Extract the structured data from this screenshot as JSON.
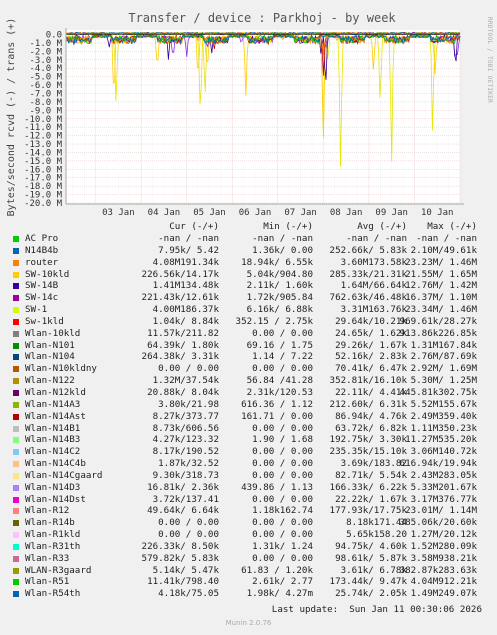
{
  "chart_data": {
    "type": "line",
    "title": "Transfer / device : Parkhoj - by week",
    "ylabel": "Bytes/second rcvd (-) / trans (+)",
    "side_label": "RRDTOOL / TOBI OETIKER",
    "yticks": [
      "0.0",
      "-1.0 M",
      "-2.0 M",
      "-3.0 M",
      "-4.0 M",
      "-5.0 M",
      "-6.0 M",
      "-7.0 M",
      "-8.0 M",
      "-9.0 M",
      "-10.0 M",
      "-11.0 M",
      "-12.0 M",
      "-13.0 M",
      "-14.0 M",
      "-15.0 M",
      "-16.0 M",
      "-17.0 M",
      "-18.0 M",
      "-19.0 M",
      "-20.0 M"
    ],
    "ytick_values": [
      0,
      -1,
      -2,
      -3,
      -4,
      -5,
      -6,
      -7,
      -8,
      -9,
      -10,
      -11,
      -12,
      -13,
      -14,
      -15,
      -16,
      -17,
      -18,
      -19,
      -20
    ],
    "ylim": [
      -20,
      0.4
    ],
    "y_unit": "M",
    "xticks": [
      "03 Jan",
      "04 Jan",
      "05 Jan",
      "06 Jan",
      "07 Jan",
      "08 Jan",
      "09 Jan",
      "10 Jan"
    ],
    "x_start_day": 2.35,
    "x_end_day": 11.0,
    "xlim_days": [
      2.35,
      11.0
    ],
    "grid": true,
    "series": [
      {
        "name": "SW-1",
        "color": "#e6e600",
        "dips": [
          [
            3.45,
            -10.5
          ],
          [
            5.3,
            -12.2
          ],
          [
            5.4,
            -8.5
          ],
          [
            8.0,
            -15.0
          ],
          [
            8.1,
            -4.5
          ],
          [
            8.38,
            -19.7
          ],
          [
            9.25,
            -11.0
          ],
          [
            9.5,
            -18.0
          ],
          [
            10.4,
            -14.5
          ]
        ]
      },
      {
        "name": "SW-10kld",
        "color": "#ffcc00",
        "dips": [
          [
            3.4,
            -9.5
          ],
          [
            4.35,
            -5.5
          ],
          [
            5.25,
            -7.0
          ],
          [
            5.45,
            -6.5
          ],
          [
            6.3,
            -8.0
          ],
          [
            8.0,
            -14.3
          ],
          [
            9.1,
            -5.5
          ],
          [
            10.45,
            -6.0
          ]
        ]
      },
      {
        "name": "SW-14c",
        "color": "#8a2be2",
        "dips": [
          [
            4.7,
            -4.2
          ],
          [
            5.0,
            -3.5
          ],
          [
            5.45,
            -2.5
          ],
          [
            6.2,
            -1.5
          ],
          [
            8.0,
            -3.5
          ],
          [
            8.05,
            -2.0
          ],
          [
            10.9,
            -4.0
          ],
          [
            10.95,
            -3.0
          ]
        ]
      },
      {
        "name": "SW-14B",
        "color": "#330099",
        "dips": [
          [
            3.3,
            -2.0
          ],
          [
            4.6,
            -3.2
          ],
          [
            5.55,
            -2.5
          ],
          [
            7.95,
            -3.0
          ],
          [
            8.05,
            -9.0
          ],
          [
            10.9,
            -4.6
          ]
        ]
      },
      {
        "name": "Sw-1kld",
        "color": "#cc0000",
        "dips": [
          [
            4.85,
            -1.5
          ],
          [
            5.6,
            -2.2
          ],
          [
            8.0,
            -5.2
          ],
          [
            10.95,
            -1.2
          ]
        ]
      },
      {
        "name": "router",
        "color": "#ff8000",
        "dips": [
          [
            3.4,
            -1.2
          ],
          [
            8.0,
            -3.0
          ],
          [
            9.7,
            -0.9
          ],
          [
            10.5,
            -1.0
          ]
        ]
      },
      {
        "name": "Wlan-N122",
        "color": "#ffa500",
        "dips": [
          [
            5.25,
            -1.0
          ],
          [
            7.1,
            -0.8
          ],
          [
            8.3,
            -1.2
          ]
        ]
      },
      {
        "name": "AC Pro",
        "color": "#00cc00",
        "dips": [
          [
            2.9,
            -0.6
          ],
          [
            4.9,
            -0.8
          ],
          [
            6.5,
            -0.7
          ],
          [
            9.0,
            -0.6
          ]
        ]
      },
      {
        "name": "N14B4b",
        "color": "#0066b3",
        "dips": [
          [
            3.6,
            -0.5
          ],
          [
            5.9,
            -0.6
          ],
          [
            8.6,
            -0.5
          ]
        ]
      }
    ]
  },
  "legend": {
    "headers": [
      "Cur (-/+)",
      "Min (-/+)",
      "Avg (-/+)",
      "Max (-/+)"
    ],
    "rows": [
      {
        "name": "AC Pro",
        "color": "#00cc00",
        "cur": "-nan / -nan",
        "min": "-nan / -nan",
        "avg": "-nan / -nan",
        "max": "-nan / -nan"
      },
      {
        "name": "N14B4b",
        "color": "#0066b3",
        "cur": "7.95k/ 5.42",
        "min": "1.36k/ 0.00",
        "avg": "252.66k/ 5.83k",
        "max": "2.10M/49.61k"
      },
      {
        "name": "router",
        "color": "#ff8000",
        "cur": "4.08M191.34k",
        "min": "18.94k/ 6.55k",
        "avg": "3.60M173.58k",
        "max": "23.23M/ 1.46M"
      },
      {
        "name": "SW-10kld",
        "color": "#ffcc00",
        "cur": "226.56k/14.17k",
        "min": "5.04k/904.80",
        "avg": "285.33k/21.31k",
        "max": "21.55M/ 1.65M"
      },
      {
        "name": "SW-14B",
        "color": "#330099",
        "cur": "1.41M134.48k",
        "min": "2.11k/ 1.60k",
        "avg": "1.64M/66.64k",
        "max": "12.76M/ 1.42M"
      },
      {
        "name": "SW-14c",
        "color": "#990099",
        "cur": "221.43k/12.61k",
        "min": "1.72k/905.84",
        "avg": "762.63k/46.48k",
        "max": "16.37M/ 1.10M"
      },
      {
        "name": "SW-1",
        "color": "#ccff00",
        "cur": "4.00M186.37k",
        "min": "6.16k/ 6.88k",
        "avg": "3.31M163.76k",
        "max": "23.34M/ 1.46M"
      },
      {
        "name": "Sw-1kld",
        "color": "#ff0000",
        "cur": "1.04k/ 8.84k",
        "min": "352.15 / 2.75k",
        "avg": "29.64k/10.21k",
        "max": "969.61k/28.27k"
      },
      {
        "name": "Wlan-10kld",
        "color": "#808080",
        "cur": "11.57k/211.82",
        "min": "0.00 / 0.00",
        "avg": "24.65k/ 1.62k",
        "max": "913.86k226.85k"
      },
      {
        "name": "Wlan-N101",
        "color": "#008f00",
        "cur": "64.39k/ 1.80k",
        "min": "69.16 / 1.75",
        "avg": "29.26k/ 1.67k",
        "max": "1.31M167.84k"
      },
      {
        "name": "Wlan-N104",
        "color": "#00487d",
        "cur": "264.38k/ 3.31k",
        "min": "1.14 / 7.22",
        "avg": "52.16k/ 2.83k",
        "max": "2.76M/87.69k"
      },
      {
        "name": "Wlan-N10kldny",
        "color": "#b35a00",
        "cur": "0.00 / 0.00",
        "min": "0.00 / 0.00",
        "avg": "70.41k/ 6.47k",
        "max": "2.92M/ 1.69M"
      },
      {
        "name": "Wlan-N122",
        "color": "#b38f00",
        "cur": "1.32M/37.54k",
        "min": "56.84 /41.28",
        "avg": "352.81k/16.10k",
        "max": "5.30M/ 1.25M"
      },
      {
        "name": "Wlan-N12kld",
        "color": "#6b006b",
        "cur": "20.88k/ 8.04k",
        "min": "2.31k/120.53",
        "avg": "22.11k/ 4.41k",
        "max": "445.81k302.75k"
      },
      {
        "name": "Wlan-N14A3",
        "color": "#8fb300",
        "cur": "3.80k/21.98",
        "min": "616.36 / 1.12",
        "avg": "212.60k/ 6.31k",
        "max": "5.52M155.67k"
      },
      {
        "name": "Wlan-N14Ast",
        "color": "#b30000",
        "cur": "8.27k/373.77",
        "min": "161.71 / 0.00",
        "avg": "86.94k/ 4.76k",
        "max": "2.49M359.40k"
      },
      {
        "name": "Wlan-N14B1",
        "color": "#bebebe",
        "cur": "8.73k/606.56",
        "min": "0.00 / 0.00",
        "avg": "63.72k/ 6.82k",
        "max": "1.11M350.23k"
      },
      {
        "name": "Wlan-N14B3",
        "color": "#80ff80",
        "cur": "4.27k/123.32",
        "min": "1.90 / 1.68",
        "avg": "192.75k/ 3.30k",
        "max": "11.27M535.20k"
      },
      {
        "name": "Wlan-N14C2",
        "color": "#80c9ff",
        "cur": "8.17k/190.52",
        "min": "0.00 / 0.00",
        "avg": "235.35k/15.10k",
        "max": "3.06M140.72k"
      },
      {
        "name": "Wlan-N14C4b",
        "color": "#ffc080",
        "cur": "1.87k/32.52",
        "min": "0.00 / 0.00",
        "avg": "3.69k/183.82",
        "max": "616.94k/19.94k"
      },
      {
        "name": "Wlan-N14Cgaard",
        "color": "#ffe680",
        "cur": "9.30k/318.73",
        "min": "0.00 / 0.00",
        "avg": "82.71k/ 5.54k",
        "max": "2.43M283.05k"
      },
      {
        "name": "Wlan-N14D3",
        "color": "#aa80ff",
        "cur": "16.81k/ 2.36k",
        "min": "439.86 / 1.13",
        "avg": "166.33k/ 6.22k",
        "max": "5.33M201.67k"
      },
      {
        "name": "Wlan-N14Dst",
        "color": "#ee00cc",
        "cur": "3.72k/137.41",
        "min": "0.00 / 0.00",
        "avg": "22.22k/ 1.67k",
        "max": "3.17M376.77k"
      },
      {
        "name": "Wlan-R12",
        "color": "#ff8080",
        "cur": "49.64k/ 6.64k",
        "min": "1.18k162.74",
        "avg": "177.93k/17.75k",
        "max": "23.01M/ 1.14M"
      },
      {
        "name": "Wlan-R14b",
        "color": "#666600",
        "cur": "0.00 / 0.00",
        "min": "0.00 / 0.00",
        "avg": "8.18k171.44",
        "max": "385.06k/20.60k"
      },
      {
        "name": "Wlan-R1kld",
        "color": "#ffbfff",
        "cur": "0.00 / 0.00",
        "min": "0.00 / 0.00",
        "avg": "5.65k158.20",
        "max": "1.27M/20.12k"
      },
      {
        "name": "Wlan-R31th",
        "color": "#00ffcc",
        "cur": "226.33k/ 8.50k",
        "min": "1.31k/ 1.24",
        "avg": "94.75k/ 4.60k",
        "max": "1.52M280.09k"
      },
      {
        "name": "Wlan-R33",
        "color": "#cc6699",
        "cur": "579.82k/ 5.83k",
        "min": "0.00 / 0.00",
        "avg": "98.61k/ 5.87k",
        "max": "3.58M938.21k"
      },
      {
        "name": "WLAN-R3gaard",
        "color": "#999900",
        "cur": "5.14k/ 5.47k",
        "min": "61.83 / 1.20k",
        "avg": "3.61k/ 6.78k",
        "max": "382.87k283.63k"
      },
      {
        "name": "Wlan-R51",
        "color": "#00cc00",
        "cur": "11.41k/798.40",
        "min": "2.61k/ 2.77",
        "avg": "173.44k/ 9.47k",
        "max": "4.04M912.21k"
      },
      {
        "name": "Wlan-R54th",
        "color": "#0066b3",
        "cur": "4.18k/75.05",
        "min": "1.98k/ 4.27m",
        "avg": "25.74k/ 2.05k",
        "max": "1.49M249.07k"
      }
    ]
  },
  "footer": {
    "last_update": "Last update:  Sun Jan 11 00:30:06 2026",
    "munin": "Munin 2.0.76"
  }
}
